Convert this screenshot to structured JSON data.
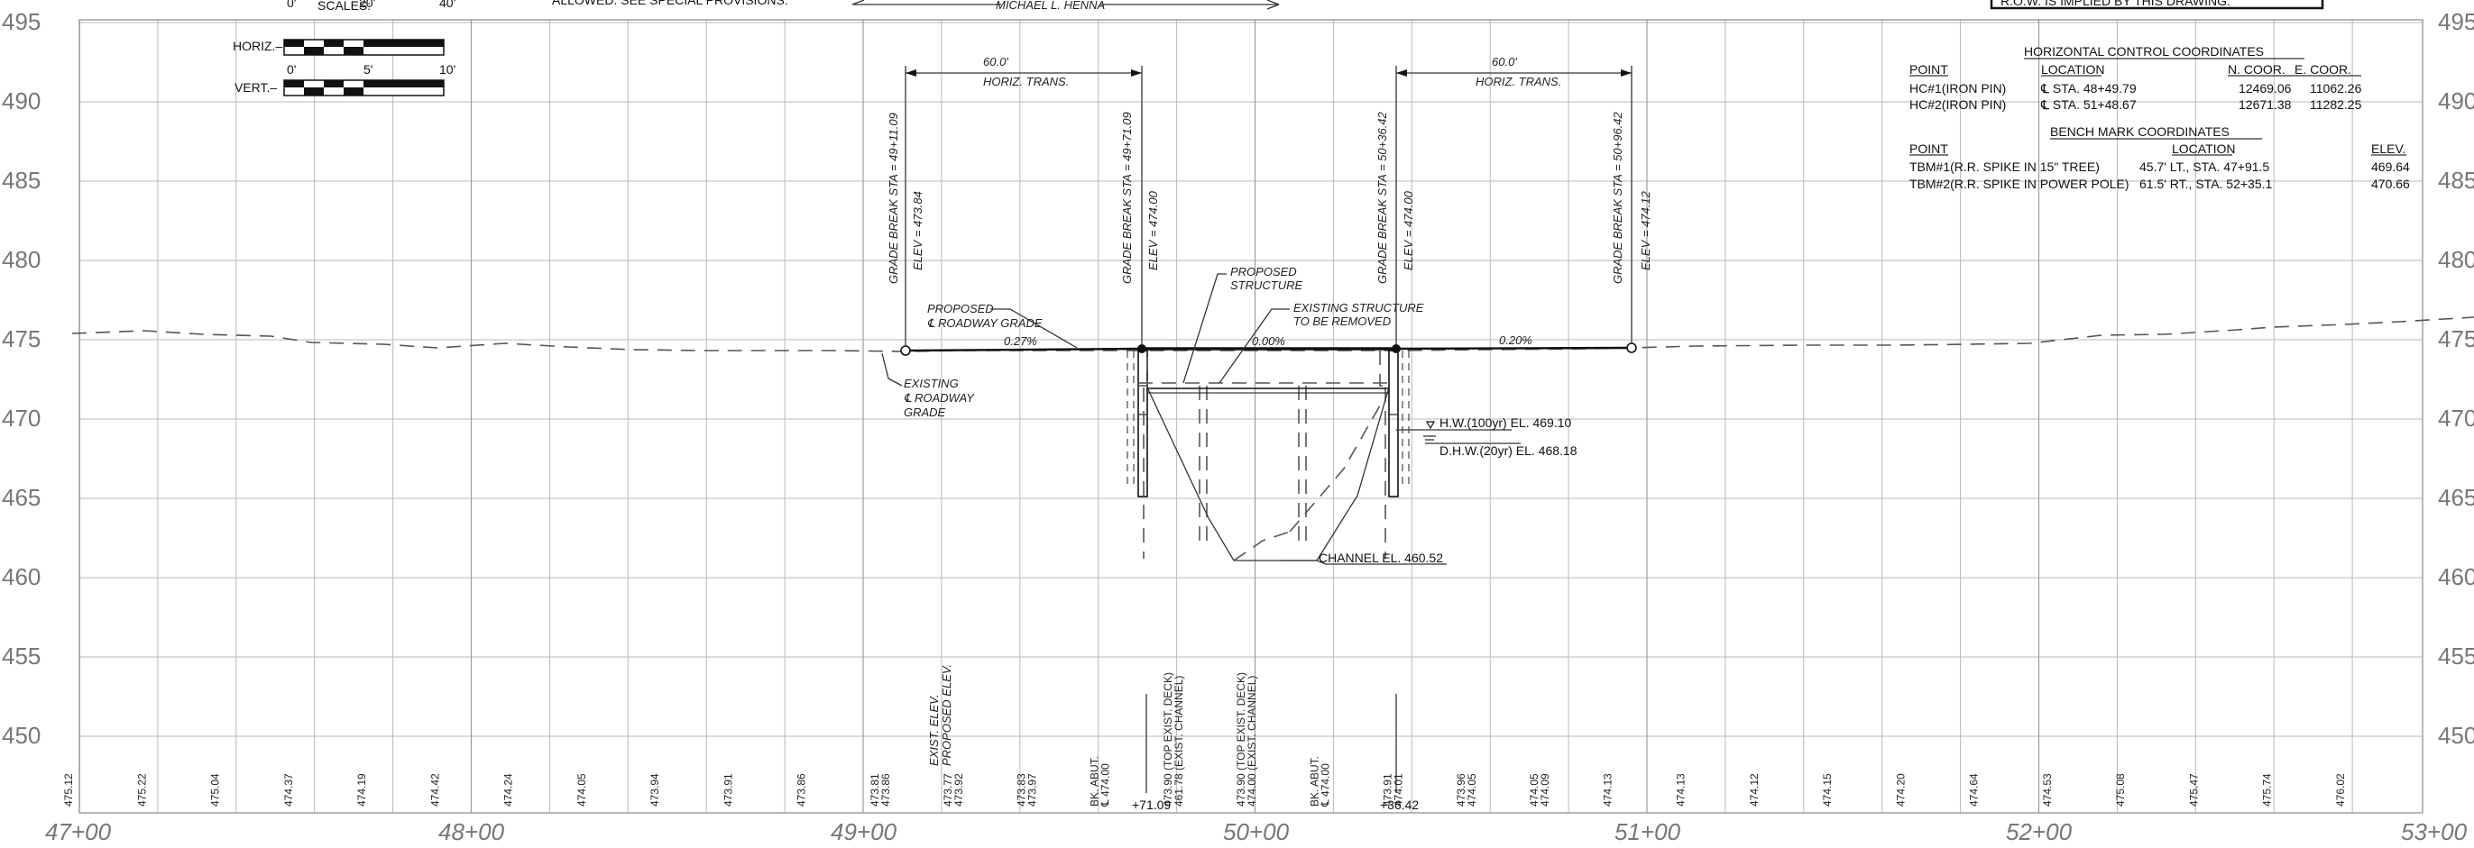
{
  "header": {
    "scales_label": "SCALES:",
    "horiz_label": "HORIZ.–",
    "vert_label": "VERT.–",
    "horiz_ticks": [
      "0'",
      "20'",
      "40'"
    ],
    "vert_ticks": [
      "0'",
      "5'",
      "10'"
    ],
    "note_fragment": "ALLOWED. SEE SPECIAL PROVISIONS.",
    "engineer": "MICHAEL L. HENNA",
    "top_right_fragment": "R.O.W. IS IMPLIED BY THIS DRAWING."
  },
  "axes": {
    "elevations": [
      "495",
      "490",
      "485",
      "480",
      "475",
      "470",
      "465",
      "460",
      "455",
      "450"
    ],
    "stations": [
      "47+00",
      "48+00",
      "49+00",
      "50+00",
      "51+00",
      "52+00",
      "53+00"
    ]
  },
  "transitions": [
    {
      "distance": "60.0'",
      "label": "HORIZ. TRANS."
    },
    {
      "distance": "60.0'",
      "label": "HORIZ. TRANS."
    }
  ],
  "grade_breaks": [
    {
      "sta": "GRADE BREAK STA = 49+11.09",
      "elev": "ELEV = 473.84"
    },
    {
      "sta": "GRADE BREAK STA = 49+71.09",
      "elev": "ELEV = 474.00"
    },
    {
      "sta": "GRADE BREAK STA = 50+36.42",
      "elev": "ELEV = 474.00"
    },
    {
      "sta": "GRADE BREAK STA = 50+96.42",
      "elev": "ELEV = 474.12"
    }
  ],
  "annotations": {
    "proposed_grade_1": "PROPOSED",
    "proposed_grade_2": "℄ ROADWAY GRADE",
    "existing_grade_1": "EXISTING",
    "existing_grade_2": "℄ ROADWAY",
    "existing_grade_3": "GRADE",
    "proposed_structure_1": "PROPOSED",
    "proposed_structure_2": "STRUCTURE",
    "existing_structure_1": "EXISTING STRUCTURE",
    "existing_structure_2": "TO BE REMOVED",
    "slope_1": "0.27%",
    "slope_2": "0.00%",
    "slope_3": "0.20%",
    "hw": "H.W.(100yr) EL. 469.10",
    "dhw": "D.H.W.(20yr) EL. 468.18",
    "channel": "CHANNEL EL. 460.52",
    "exist_elev_label": "EXIST. ELEV.",
    "proposed_elev_label": "PROPOSED ELEV.",
    "sta_7109": "+71.09",
    "sta_3642": "+36.42"
  },
  "control_coordinates": {
    "title": "HORIZONTAL CONTROL COORDINATES",
    "headers": [
      "POINT",
      "LOCATION",
      "N. COOR.",
      "E. COOR."
    ],
    "rows": [
      [
        "HC#1(IRON PIN)",
        "℄ STA. 48+49.79",
        "12469.06",
        "11062.26"
      ],
      [
        "HC#2(IRON PIN)",
        "℄ STA. 51+48.67",
        "12671.38",
        "11282.25"
      ]
    ]
  },
  "bench_marks": {
    "title": "BENCH MARK COORDINATES",
    "headers": [
      "POINT",
      "LOCATION",
      "ELEV."
    ],
    "rows": [
      [
        "TBM#1(R.R. SPIKE IN 15\" TREE)",
        "45.7' LT., STA. 47+91.5",
        "469.64"
      ],
      [
        "TBM#2(R.R. SPIKE IN POWER POLE)",
        "61.5' RT., STA. 52+35.1",
        "470.66"
      ]
    ]
  },
  "bottom_values": [
    {
      "top": "475.12",
      "bot": ""
    },
    {
      "top": "475.22",
      "bot": ""
    },
    {
      "top": "475.04",
      "bot": ""
    },
    {
      "top": "474.37",
      "bot": ""
    },
    {
      "top": "474.19",
      "bot": ""
    },
    {
      "top": "474.42",
      "bot": ""
    },
    {
      "top": "474.24",
      "bot": ""
    },
    {
      "top": "474.05",
      "bot": ""
    },
    {
      "top": "473.94",
      "bot": ""
    },
    {
      "top": "473.91",
      "bot": ""
    },
    {
      "top": "473.86",
      "bot": ""
    },
    {
      "top": "473.81",
      "bot": "473.86"
    },
    {
      "top": "473.77",
      "bot": "473.92"
    },
    {
      "top": "473.83",
      "bot": "473.97"
    },
    {
      "top": "BK. ABUT.",
      "bot": "℄ 474.00"
    },
    {
      "top": "473.90 (TOP EXIST. DECK)",
      "bot": "461.78 (EXIST. CHANNEL)"
    },
    {
      "top": "473.90 (TOP EXIST. DECK)",
      "bot": "474.00 (EXIST. CHANNEL)"
    },
    {
      "top": "BK. ABUT.",
      "bot": "℄ 474.00"
    },
    {
      "top": "473.91",
      "bot": "474.01"
    },
    {
      "top": "473.96",
      "bot": "474.05"
    },
    {
      "top": "474.05",
      "bot": "474.09"
    },
    {
      "top": "474.13",
      "bot": ""
    },
    {
      "top": "474.13",
      "bot": ""
    },
    {
      "top": "474.12",
      "bot": ""
    },
    {
      "top": "474.15",
      "bot": ""
    },
    {
      "top": "474.20",
      "bot": ""
    },
    {
      "top": "474.64",
      "bot": ""
    },
    {
      "top": "474.53",
      "bot": ""
    },
    {
      "top": "475.08",
      "bot": ""
    },
    {
      "top": "475.47",
      "bot": ""
    },
    {
      "top": "475.74",
      "bot": ""
    },
    {
      "top": "476.02",
      "bot": ""
    }
  ]
}
